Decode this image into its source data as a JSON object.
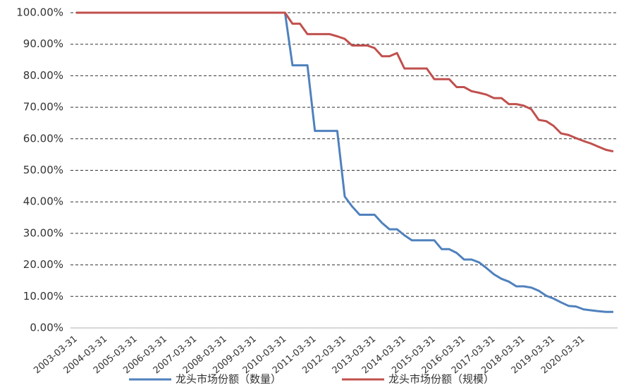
{
  "chart_data": {
    "type": "line",
    "categories": [
      "2003-03-31",
      null,
      null,
      null,
      "2004-03-31",
      null,
      null,
      null,
      "2005-03-31",
      null,
      null,
      null,
      "2006-03-31",
      null,
      null,
      null,
      "2007-03-31",
      null,
      null,
      null,
      "2008-03-31",
      null,
      null,
      null,
      "2009-03-31",
      null,
      null,
      null,
      "2010-03-31",
      null,
      null,
      null,
      "2011-03-31",
      null,
      null,
      null,
      "2012-03-31",
      null,
      null,
      null,
      "2013-03-31",
      null,
      null,
      null,
      "2014-03-31",
      null,
      null,
      null,
      "2015-03-31",
      null,
      null,
      null,
      "2016-03-31",
      null,
      null,
      null,
      "2017-03-31",
      null,
      null,
      null,
      "2018-03-31",
      null,
      null,
      null,
      "2019-03-31",
      null,
      null,
      null,
      "2020-03-31",
      null,
      null,
      null,
      null
    ],
    "series": [
      {
        "name": "龙头市场份额（数量）",
        "color": "#4f81bd",
        "values": [
          100,
          100,
          100,
          100,
          100,
          100,
          100,
          100,
          100,
          100,
          100,
          100,
          100,
          100,
          100,
          100,
          100,
          100,
          100,
          100,
          100,
          100,
          100,
          100,
          100,
          100,
          100,
          100,
          100,
          83.3,
          83.3,
          83.3,
          62.5,
          62.5,
          62.5,
          62.5,
          41.7,
          38.5,
          35.9,
          35.9,
          35.9,
          33.3,
          31.3,
          31.3,
          29.4,
          27.8,
          27.8,
          27.8,
          27.8,
          25.0,
          25.0,
          23.8,
          21.7,
          21.7,
          20.8,
          19.0,
          17.0,
          15.6,
          14.7,
          13.2,
          13.2,
          12.8,
          11.8,
          10.2,
          9.3,
          8.1,
          7.0,
          6.8,
          5.9,
          5.6,
          5.3,
          5.1,
          5.1
        ]
      },
      {
        "name": "龙头市场份额（规模）",
        "color": "#c0504d",
        "values": [
          100,
          100,
          100,
          100,
          100,
          100,
          100,
          100,
          100,
          100,
          100,
          100,
          100,
          100,
          100,
          100,
          100,
          100,
          100,
          100,
          100,
          100,
          100,
          100,
          100,
          100,
          100,
          100,
          100,
          96.5,
          96.5,
          93.2,
          93.2,
          93.2,
          93.2,
          92.5,
          91.7,
          89.6,
          89.6,
          89.6,
          88.8,
          86.2,
          86.2,
          87.2,
          82.3,
          82.3,
          82.3,
          82.3,
          78.9,
          78.9,
          78.9,
          76.4,
          76.4,
          75.1,
          74.6,
          74.0,
          72.9,
          72.9,
          71.0,
          71.0,
          70.5,
          69.4,
          66.0,
          65.6,
          64.1,
          61.7,
          61.2,
          60.2,
          59.3,
          58.5,
          57.5,
          56.5,
          56.0
        ]
      }
    ],
    "ylim": [
      0,
      100
    ],
    "yticks": [
      {
        "value": 0,
        "label": "0.00%"
      },
      {
        "value": 10,
        "label": "10.00%"
      },
      {
        "value": 20,
        "label": "20.00%"
      },
      {
        "value": 30,
        "label": "30.00%"
      },
      {
        "value": 40,
        "label": "40.00%"
      },
      {
        "value": 50,
        "label": "50.00%"
      },
      {
        "value": 60,
        "label": "60.00%"
      },
      {
        "value": 70,
        "label": "70.00%"
      },
      {
        "value": 80,
        "label": "80.00%"
      },
      {
        "value": 90,
        "label": "90.00%"
      },
      {
        "value": 100,
        "label": "100.00%"
      }
    ],
    "grid": true,
    "legend": "bottom"
  }
}
